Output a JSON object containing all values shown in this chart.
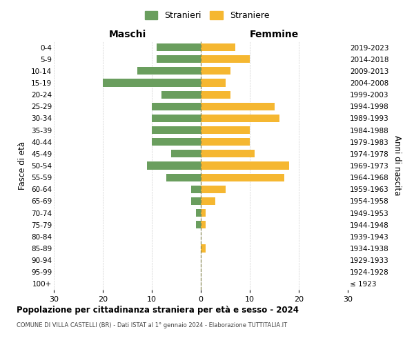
{
  "age_groups": [
    "100+",
    "95-99",
    "90-94",
    "85-89",
    "80-84",
    "75-79",
    "70-74",
    "65-69",
    "60-64",
    "55-59",
    "50-54",
    "45-49",
    "40-44",
    "35-39",
    "30-34",
    "25-29",
    "20-24",
    "15-19",
    "10-14",
    "5-9",
    "0-4"
  ],
  "birth_years": [
    "≤ 1923",
    "1924-1928",
    "1929-1933",
    "1934-1938",
    "1939-1943",
    "1944-1948",
    "1949-1953",
    "1954-1958",
    "1959-1963",
    "1964-1968",
    "1969-1973",
    "1974-1978",
    "1979-1983",
    "1984-1988",
    "1989-1993",
    "1994-1998",
    "1999-2003",
    "2004-2008",
    "2009-2013",
    "2014-2018",
    "2019-2023"
  ],
  "males": [
    0,
    0,
    0,
    0,
    0,
    1,
    1,
    2,
    2,
    7,
    11,
    6,
    10,
    10,
    10,
    10,
    8,
    20,
    13,
    9,
    9
  ],
  "females": [
    0,
    0,
    0,
    1,
    0,
    1,
    1,
    3,
    5,
    17,
    18,
    11,
    10,
    10,
    16,
    15,
    6,
    5,
    6,
    10,
    7
  ],
  "male_color": "#6a9e5e",
  "female_color": "#f5b731",
  "background_color": "#ffffff",
  "grid_color": "#cccccc",
  "title": "Popolazione per cittadinanza straniera per età e sesso - 2024",
  "subtitle": "COMUNE DI VILLA CASTELLI (BR) - Dati ISTAT al 1° gennaio 2024 - Elaborazione TUTTITALIA.IT",
  "ylabel_left": "Fasce di età",
  "ylabel_right": "Anni di nascita",
  "label_maschi": "Maschi",
  "label_femmine": "Femmine",
  "legend_male": "Stranieri",
  "legend_female": "Straniere",
  "xlim": 30,
  "figsize": [
    6.0,
    5.0
  ],
  "dpi": 100
}
